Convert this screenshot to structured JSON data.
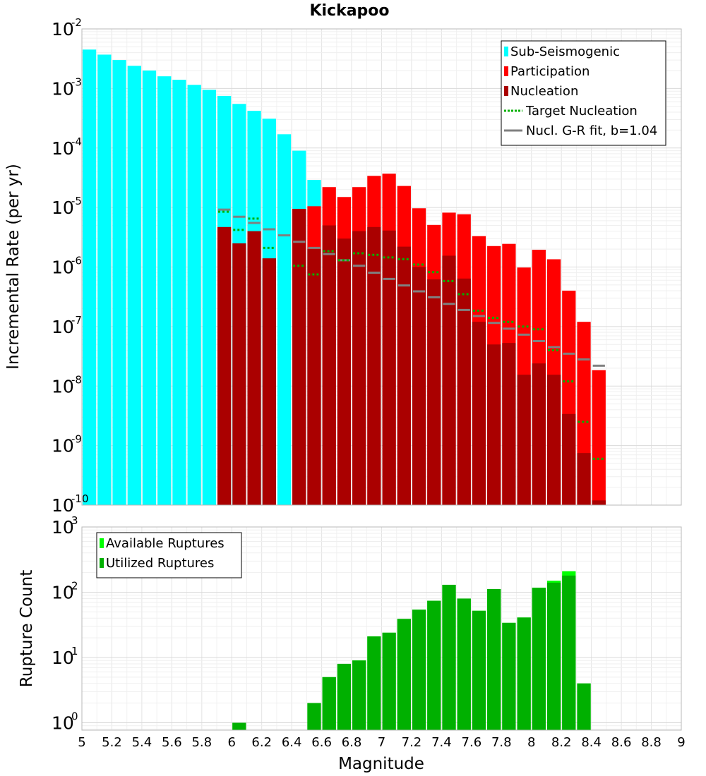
{
  "chart_data": [
    {
      "type": "bar",
      "title": "Kickapoo",
      "ylabel": "Incremental Rate (per yr)",
      "yscale": "log",
      "ylim": [
        1e-10,
        0.01
      ],
      "xlim": [
        5,
        9
      ],
      "bin_width": 0.1,
      "grid": true,
      "legend_position": "top-right",
      "y_ticks": [
        {
          "base": "10",
          "exp": "-2"
        },
        {
          "base": "10",
          "exp": "-3"
        },
        {
          "base": "10",
          "exp": "-4"
        },
        {
          "base": "10",
          "exp": "-5"
        },
        {
          "base": "10",
          "exp": "-6"
        },
        {
          "base": "10",
          "exp": "-7"
        },
        {
          "base": "10",
          "exp": "-8"
        },
        {
          "base": "10",
          "exp": "-9"
        },
        {
          "base": "10",
          "exp": "-10"
        }
      ],
      "legend": [
        {
          "label": "Sub-Seismogenic",
          "style": "bar",
          "color": "#00ffff"
        },
        {
          "label": "Participation",
          "style": "bar",
          "color": "#ff0000"
        },
        {
          "label": "Nucleation",
          "style": "bar",
          "color": "#aa0000"
        },
        {
          "label": "Target Nucleation",
          "style": "dotted",
          "color": "#00b000"
        },
        {
          "label": "Nucl. G-R fit, b=1.04",
          "style": "line",
          "color": "#808080"
        }
      ],
      "series": [
        {
          "name": "Sub-Seismogenic",
          "color": "#00ffff",
          "x": [
            5.05,
            5.15,
            5.25,
            5.35,
            5.45,
            5.55,
            5.65,
            5.75,
            5.85,
            5.95,
            6.05,
            6.15,
            6.25,
            6.35,
            6.45,
            6.55
          ],
          "values": [
            0.0045,
            0.0037,
            0.003,
            0.0024,
            0.002,
            0.0016,
            0.0014,
            0.00115,
            0.00095,
            0.00075,
            0.00055,
            0.00042,
            0.00031,
            0.00017,
            9e-05,
            2.9e-05
          ]
        },
        {
          "name": "Participation",
          "color": "#ff0000",
          "x": [
            6.45,
            6.55,
            6.65,
            6.75,
            6.85,
            6.95,
            7.05,
            7.15,
            7.25,
            7.35,
            7.45,
            7.55,
            7.65,
            7.75,
            7.85,
            7.95,
            8.05,
            8.15,
            8.25,
            8.35,
            8.45
          ],
          "values": [
            9.5e-06,
            1.05e-05,
            2.2e-05,
            1.5e-05,
            2.2e-05,
            3.4e-05,
            3.7e-05,
            2.3e-05,
            9.7e-06,
            5.1e-06,
            8.2e-06,
            7.7e-06,
            3.3e-06,
            2.25e-06,
            2.45e-06,
            9.8e-07,
            1.95e-06,
            1.35e-06,
            4e-07,
            1.2e-07,
            1.85e-08
          ]
        },
        {
          "name": "Nucleation",
          "color": "#aa0000",
          "x": [
            5.95,
            6.05,
            6.15,
            6.25,
            6.35,
            6.45,
            6.55,
            6.65,
            6.75,
            6.85,
            6.95,
            7.05,
            7.15,
            7.25,
            7.35,
            7.45,
            7.55,
            7.65,
            7.75,
            7.85,
            7.95,
            8.05,
            8.15,
            8.25,
            8.35,
            8.45
          ],
          "values": [
            4.7e-06,
            2.5e-06,
            4e-06,
            1.4e-06,
            1e-10,
            9.5e-06,
            2e-06,
            5e-06,
            3e-06,
            4e-06,
            4.7e-06,
            4.1e-06,
            2.2e-06,
            1e-06,
            6.2e-07,
            1.55e-06,
            6.4e-07,
            1.2e-07,
            5e-08,
            5.3e-08,
            1.55e-08,
            2.4e-08,
            1.55e-08,
            3.4e-09,
            7.5e-10,
            1.2e-10
          ]
        },
        {
          "name": "Target Nucleation",
          "color": "#00b000",
          "x": [
            5.95,
            6.05,
            6.15,
            6.25,
            6.35,
            6.45,
            6.55,
            6.65,
            6.75,
            6.85,
            6.95,
            7.05,
            7.15,
            7.25,
            7.35,
            7.45,
            7.55,
            7.65,
            7.75,
            7.85,
            7.95,
            8.05,
            8.15,
            8.25,
            8.35,
            8.45
          ],
          "values": [
            8.5e-06,
            4.2e-06,
            6.5e-06,
            2.1e-06,
            null,
            1.05e-06,
            7.5e-07,
            1.85e-06,
            1.3e-06,
            1.7e-06,
            1.6e-06,
            1.45e-06,
            1.35e-06,
            1.1e-06,
            8.2e-07,
            5.8e-07,
            3.5e-07,
            1.85e-07,
            1.4e-07,
            1.2e-07,
            1e-07,
            9e-08,
            4e-08,
            1.2e-08,
            2.5e-09,
            6e-10
          ]
        },
        {
          "name": "Nucl. G-R fit, b=1.04",
          "color": "#808080",
          "x": [
            5.95,
            6.05,
            6.15,
            6.25,
            6.35,
            6.45,
            6.55,
            6.65,
            6.75,
            6.85,
            6.95,
            7.05,
            7.15,
            7.25,
            7.35,
            7.45,
            7.55,
            7.65,
            7.75,
            7.85,
            7.95,
            8.05,
            8.15,
            8.25,
            8.35,
            8.45
          ],
          "values": [
            9.2e-06,
            7e-06,
            5.5e-06,
            4.3e-06,
            3.4e-06,
            2.65e-06,
            2.1e-06,
            1.65e-06,
            1.3e-06,
            1.05e-06,
            8e-07,
            6.3e-07,
            4.9e-07,
            3.9e-07,
            3.1e-07,
            2.4e-07,
            1.9e-07,
            1.5e-07,
            1.15e-07,
            9.2e-08,
            7.3e-08,
            5.7e-08,
            4.5e-08,
            3.5e-08,
            2.8e-08,
            2.2e-08
          ]
        }
      ]
    },
    {
      "type": "bar",
      "ylabel": "Rupture Count",
      "xlabel": "Magnitude",
      "yscale": "log",
      "ylim": [
        0.77,
        1000
      ],
      "xlim": [
        5,
        9
      ],
      "bin_width": 0.1,
      "grid": true,
      "legend_position": "top-left",
      "x_ticks": [
        "5",
        "5.2",
        "5.4",
        "5.6",
        "5.8",
        "6",
        "6.2",
        "6.4",
        "6.6",
        "6.8",
        "7",
        "7.2",
        "7.4",
        "7.6",
        "7.8",
        "8",
        "8.2",
        "8.4",
        "8.6",
        "8.8",
        "9"
      ],
      "y_ticks": [
        {
          "base": "10",
          "exp": "3",
          "value": 1000
        },
        {
          "base": "10",
          "exp": "2",
          "value": 100
        },
        {
          "base": "10",
          "exp": "1",
          "value": 10
        },
        {
          "base": "10",
          "exp": "0",
          "value": 1
        }
      ],
      "legend": [
        {
          "label": "Available Ruptures",
          "style": "bar",
          "color": "#00ff00"
        },
        {
          "label": "Utilized Ruptures",
          "style": "bar",
          "color": "#00b000"
        }
      ],
      "series": [
        {
          "name": "Available Ruptures",
          "color": "#00ff00",
          "x": [
            6.05,
            6.55,
            6.65,
            6.75,
            6.85,
            6.95,
            7.05,
            7.15,
            7.25,
            7.35,
            7.45,
            7.55,
            7.65,
            7.75,
            7.85,
            7.95,
            8.05,
            8.15,
            8.25,
            8.35
          ],
          "values": [
            1,
            2,
            5,
            8,
            9,
            21,
            24,
            39,
            54,
            74,
            130,
            80,
            52,
            112,
            34,
            41,
            117,
            150,
            210,
            4
          ]
        },
        {
          "name": "Utilized Ruptures",
          "color": "#00b000",
          "x": [
            6.05,
            6.55,
            6.65,
            6.75,
            6.85,
            6.95,
            7.05,
            7.15,
            7.25,
            7.35,
            7.45,
            7.55,
            7.65,
            7.75,
            7.85,
            7.95,
            8.05,
            8.15,
            8.25,
            8.35
          ],
          "values": [
            1,
            2,
            5,
            8,
            9,
            21,
            24,
            39,
            54,
            74,
            130,
            80,
            52,
            112,
            34,
            41,
            117,
            140,
            180,
            4
          ]
        }
      ]
    }
  ]
}
